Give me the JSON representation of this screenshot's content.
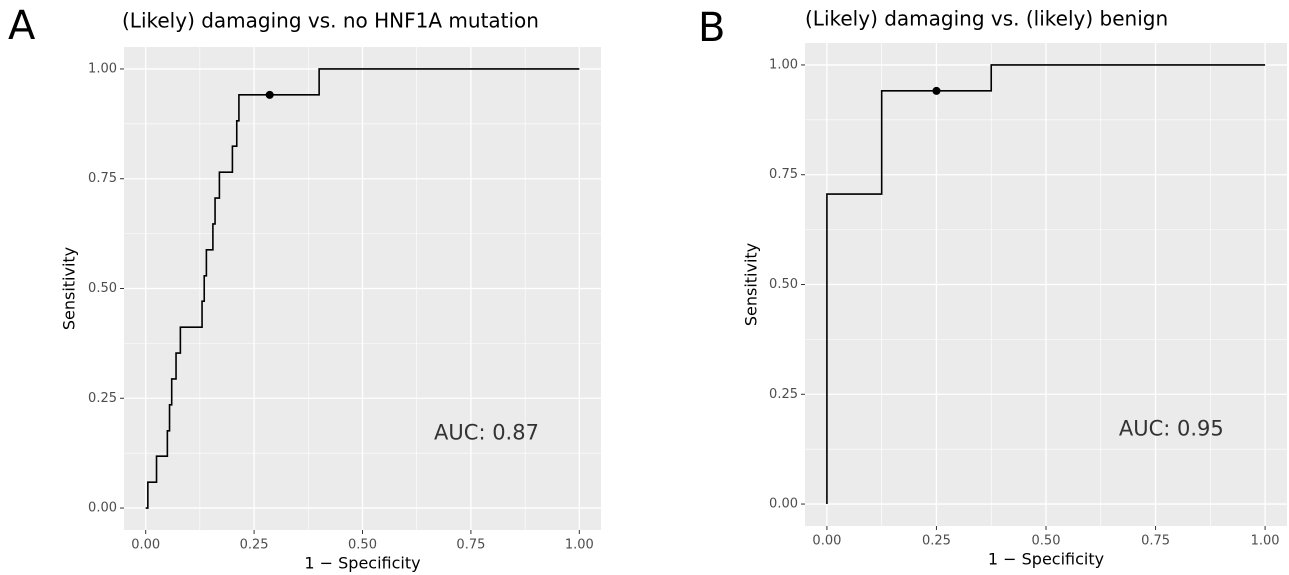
{
  "chart_data": [
    {
      "type": "line",
      "panel_label": "A",
      "title": "(Likely) damaging vs. no HNF1A mutation",
      "x_label": "1 − Specificity",
      "y_label": "Sensitivity",
      "series": [
        {
          "color": "#000000",
          "x": [
            0,
            0.005,
            0.005,
            0.025,
            0.025,
            0.05,
            0.05,
            0.055,
            0.055,
            0.06,
            0.06,
            0.07,
            0.07,
            0.08,
            0.08,
            0.13,
            0.13,
            0.135,
            0.135,
            0.14,
            0.14,
            0.155,
            0.155,
            0.16,
            0.16,
            0.17,
            0.17,
            0.2,
            0.2,
            0.21,
            0.21,
            0.215,
            0.215,
            0.4,
            0.4,
            1
          ],
          "values": [
            0,
            0,
            0.059,
            0.059,
            0.118,
            0.118,
            0.176,
            0.176,
            0.235,
            0.235,
            0.294,
            0.294,
            0.353,
            0.353,
            0.412,
            0.412,
            0.471,
            0.471,
            0.529,
            0.529,
            0.588,
            0.588,
            0.647,
            0.647,
            0.706,
            0.706,
            0.765,
            0.765,
            0.824,
            0.824,
            0.882,
            0.882,
            0.941,
            0.941,
            1,
            1
          ]
        }
      ],
      "marker": {
        "x": 0.286,
        "y": 0.941
      },
      "annotation": "AUC: 0.87",
      "xlim": [
        -0.05,
        1.05
      ],
      "ylim": [
        -0.05,
        1.05
      ],
      "xticks": [
        {
          "value": 0,
          "label": "0.00"
        },
        0.25,
        {
          "value": 0.5,
          "label": "0.50"
        },
        0.75,
        {
          "value": 1,
          "label": "1.00"
        }
      ],
      "yticks": [
        {
          "value": 0,
          "label": "0.00"
        },
        0.25,
        {
          "value": 0.5,
          "label": "0.50"
        },
        0.75,
        {
          "value": 1,
          "label": "1.00"
        }
      ],
      "grid": true
    },
    {
      "type": "line",
      "panel_label": "B",
      "title": "(Likely) damaging vs. (likely) benign",
      "x_label": "1 − Specificity",
      "y_label": "Sensitivity",
      "series": [
        {
          "color": "#000000",
          "x": [
            0,
            0,
            0.125,
            0.125,
            0.375,
            0.375,
            1
          ],
          "values": [
            0,
            0.706,
            0.706,
            0.941,
            0.941,
            1,
            1
          ]
        }
      ],
      "marker": {
        "x": 0.25,
        "y": 0.941
      },
      "annotation": "AUC: 0.95",
      "xlim": [
        -0.05,
        1.05
      ],
      "ylim": [
        -0.05,
        1.05
      ],
      "xticks": [
        {
          "value": 0,
          "label": "0.00"
        },
        0.25,
        {
          "value": 0.5,
          "label": "0.50"
        },
        0.75,
        {
          "value": 1,
          "label": "1.00"
        }
      ],
      "yticks": [
        {
          "value": 0,
          "label": "0.00"
        },
        0.25,
        {
          "value": 0.5,
          "label": "0.50"
        },
        0.75,
        {
          "value": 1,
          "label": "1.00"
        }
      ],
      "grid": true
    }
  ]
}
